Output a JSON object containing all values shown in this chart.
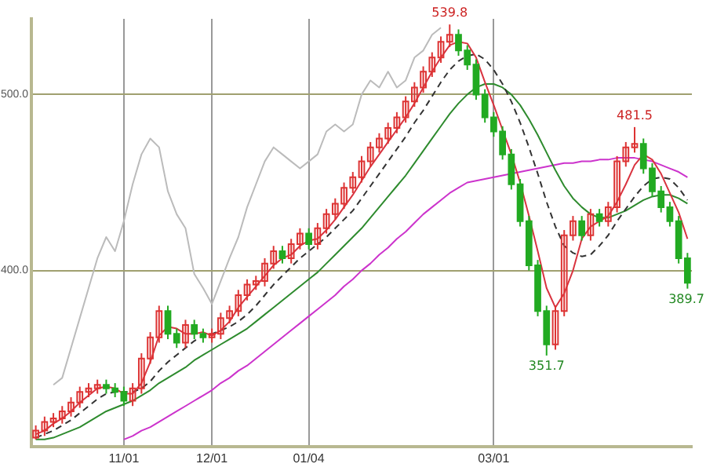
{
  "chart_data": {
    "type": "candlestick",
    "categories": [
      null,
      null,
      null,
      null,
      null,
      null,
      null,
      null,
      null,
      null,
      "11/01",
      null,
      null,
      null,
      null,
      null,
      null,
      null,
      null,
      null,
      "12/01",
      null,
      null,
      null,
      null,
      null,
      null,
      null,
      null,
      null,
      null,
      "01/04",
      null,
      null,
      null,
      null,
      null,
      null,
      null,
      null,
      null,
      null,
      null,
      null,
      null,
      null,
      null,
      null,
      null,
      null,
      null,
      null,
      "03/01",
      null,
      null,
      null,
      null,
      null,
      null,
      null,
      null,
      null,
      null,
      null,
      null,
      null,
      null,
      null,
      null,
      null,
      null,
      null,
      null,
      null,
      null
    ],
    "ohlc": [
      [
        305,
        312,
        304,
        309
      ],
      [
        309,
        317,
        306,
        314
      ],
      [
        314,
        319,
        311,
        316
      ],
      [
        316,
        323,
        313,
        320
      ],
      [
        320,
        328,
        317,
        325
      ],
      [
        325,
        334,
        322,
        331
      ],
      [
        331,
        336,
        328,
        333
      ],
      [
        333,
        338,
        330,
        335
      ],
      [
        335,
        338,
        330,
        333
      ],
      [
        333,
        336,
        328,
        331
      ],
      [
        331,
        334,
        323,
        326
      ],
      [
        326,
        336,
        323,
        333
      ],
      [
        333,
        353,
        330,
        350
      ],
      [
        350,
        365,
        347,
        362
      ],
      [
        362,
        380,
        359,
        377
      ],
      [
        377,
        380,
        361,
        364
      ],
      [
        364,
        367,
        356,
        359
      ],
      [
        359,
        372,
        356,
        369
      ],
      [
        369,
        372,
        361,
        364
      ],
      [
        364,
        367,
        359,
        362
      ],
      [
        362,
        367,
        359,
        364
      ],
      [
        364,
        376,
        361,
        373
      ],
      [
        373,
        380,
        370,
        377
      ],
      [
        377,
        389,
        374,
        386
      ],
      [
        386,
        395,
        383,
        392
      ],
      [
        392,
        397,
        389,
        394
      ],
      [
        394,
        407,
        391,
        404
      ],
      [
        404,
        414,
        401,
        411
      ],
      [
        411,
        414,
        404,
        407
      ],
      [
        407,
        418,
        404,
        415
      ],
      [
        415,
        424,
        412,
        421
      ],
      [
        421,
        424,
        412,
        415
      ],
      [
        415,
        427,
        412,
        424
      ],
      [
        424,
        435,
        421,
        432
      ],
      [
        432,
        441,
        429,
        438
      ],
      [
        438,
        450,
        435,
        447
      ],
      [
        447,
        456,
        444,
        453
      ],
      [
        453,
        465,
        450,
        462
      ],
      [
        462,
        473,
        459,
        470
      ],
      [
        470,
        478,
        467,
        475
      ],
      [
        475,
        484,
        472,
        481
      ],
      [
        481,
        490,
        478,
        487
      ],
      [
        487,
        499,
        484,
        496
      ],
      [
        496,
        507,
        493,
        504
      ],
      [
        504,
        516,
        501,
        513
      ],
      [
        513,
        524,
        510,
        521
      ],
      [
        521,
        533,
        518,
        530
      ],
      [
        530,
        539.8,
        527,
        534
      ],
      [
        534,
        537,
        522,
        525
      ],
      [
        525,
        528,
        514,
        517
      ],
      [
        517,
        520,
        497,
        500
      ],
      [
        500,
        503,
        484,
        487
      ],
      [
        487,
        490,
        476,
        479
      ],
      [
        479,
        482,
        463,
        466
      ],
      [
        466,
        469,
        446,
        449
      ],
      [
        449,
        452,
        425,
        428
      ],
      [
        428,
        431,
        400,
        403
      ],
      [
        403,
        406,
        374,
        377
      ],
      [
        377,
        380,
        351.7,
        358
      ],
      [
        358,
        380,
        355,
        377
      ],
      [
        377,
        423,
        374,
        420
      ],
      [
        420,
        431,
        417,
        428
      ],
      [
        428,
        431,
        417,
        420
      ],
      [
        420,
        435,
        417,
        432
      ],
      [
        432,
        435,
        425,
        428
      ],
      [
        428,
        439,
        425,
        436
      ],
      [
        436,
        465,
        433,
        462
      ],
      [
        462,
        473,
        459,
        470
      ],
      [
        470,
        481.5,
        467,
        472
      ],
      [
        472,
        475,
        455,
        458
      ],
      [
        458,
        461,
        442,
        445
      ],
      [
        445,
        448,
        433,
        436
      ],
      [
        436,
        439,
        425,
        428
      ],
      [
        428,
        431,
        404,
        407
      ],
      [
        407,
        410,
        389.7,
        393
      ]
    ],
    "series": [
      {
        "type": "line",
        "color": "#d9333f",
        "values": [
          307,
          309,
          313,
          316,
          320,
          325,
          329,
          333,
          334,
          333,
          330,
          330,
          336,
          348,
          363,
          368,
          367,
          364,
          364,
          365,
          363,
          366,
          371,
          379,
          385,
          391,
          397,
          403,
          407,
          409,
          414,
          417,
          418,
          423,
          429,
          436,
          443,
          451,
          459,
          466,
          473,
          480,
          487,
          495,
          504,
          513,
          521,
          528,
          530,
          529,
          521,
          507,
          494,
          480,
          466,
          450,
          431,
          411,
          390,
          379,
          387,
          400,
          418,
          425,
          428,
          431,
          439,
          449,
          460,
          466,
          463,
          455,
          444,
          433,
          418
        ]
      },
      {
        "type": "line",
        "color": "#333333",
        "line_style": "dashed",
        "values": [
          305,
          307,
          309,
          312,
          315,
          319,
          323,
          327,
          330,
          331,
          331,
          331,
          333,
          337,
          343,
          348,
          352,
          356,
          360,
          363,
          364,
          366,
          368,
          371,
          375,
          380,
          386,
          392,
          397,
          402,
          407,
          411,
          415,
          419,
          424,
          429,
          434,
          441,
          448,
          455,
          462,
          469,
          476,
          484,
          491,
          499,
          507,
          514,
          519,
          522,
          523,
          520,
          514,
          506,
          496,
          484,
          470,
          455,
          439,
          425,
          414,
          410,
          408,
          409,
          414,
          420,
          428,
          435,
          442,
          448,
          452,
          453,
          452,
          447,
          440
        ]
      },
      {
        "type": "line",
        "color": "#2e8b2e",
        "values": [
          304,
          304,
          305,
          307,
          309,
          311,
          314,
          317,
          320,
          322,
          324,
          326,
          329,
          332,
          336,
          339,
          342,
          345,
          349,
          352,
          355,
          358,
          361,
          364,
          367,
          371,
          375,
          379,
          383,
          387,
          391,
          395,
          399,
          404,
          409,
          414,
          419,
          424,
          430,
          436,
          442,
          448,
          454,
          461,
          468,
          475,
          482,
          489,
          495,
          500,
          504,
          506,
          506,
          504,
          500,
          494,
          486,
          477,
          467,
          457,
          448,
          441,
          436,
          432,
          430,
          430,
          432,
          434,
          437,
          440,
          442,
          443,
          443,
          441,
          438
        ]
      },
      {
        "type": "line",
        "color": "#cc33cc",
        "values": [
          null,
          null,
          null,
          null,
          null,
          null,
          null,
          null,
          null,
          null,
          304,
          306,
          309,
          311,
          314,
          317,
          320,
          323,
          326,
          329,
          332,
          336,
          339,
          343,
          346,
          350,
          354,
          358,
          362,
          366,
          370,
          374,
          378,
          382,
          386,
          391,
          395,
          400,
          404,
          409,
          413,
          418,
          422,
          427,
          432,
          436,
          440,
          444,
          447,
          450,
          451,
          452,
          453,
          454,
          455,
          456,
          457,
          458,
          459,
          460,
          461,
          461,
          462,
          462,
          463,
          463,
          464,
          464,
          464,
          463,
          462,
          460,
          458,
          456,
          453
        ]
      },
      {
        "type": "line",
        "color": "#bbbbbb",
        "values": [
          null,
          null,
          335,
          339,
          356,
          373,
          390,
          407,
          419,
          411,
          428,
          449,
          466,
          475,
          470,
          445,
          432,
          424,
          398,
          390,
          381,
          394,
          407,
          419,
          436,
          449,
          462,
          470,
          466,
          462,
          458,
          462,
          466,
          479,
          483,
          479,
          483,
          500,
          508,
          504,
          513,
          504,
          508,
          521,
          525,
          534,
          538,
          null,
          null,
          null,
          null,
          null,
          null,
          null,
          null,
          null,
          null,
          null,
          null,
          null,
          null,
          null,
          null,
          null,
          null,
          null,
          null,
          null,
          null,
          null,
          null,
          null,
          null,
          null,
          null
        ]
      }
    ],
    "ylim": [
      300,
      543
    ],
    "yticks": [
      {
        "value": 400,
        "label": "400.0"
      },
      {
        "value": 500,
        "label": "500.0"
      }
    ],
    "grid": true,
    "legend": false,
    "annotations": [
      {
        "text": "539.8",
        "y": 539.8
      },
      {
        "text": "481.5",
        "y": 481.5
      },
      {
        "text": "351.7",
        "y": 351.7
      },
      {
        "text": "389.7",
        "y": 389.7
      }
    ]
  }
}
